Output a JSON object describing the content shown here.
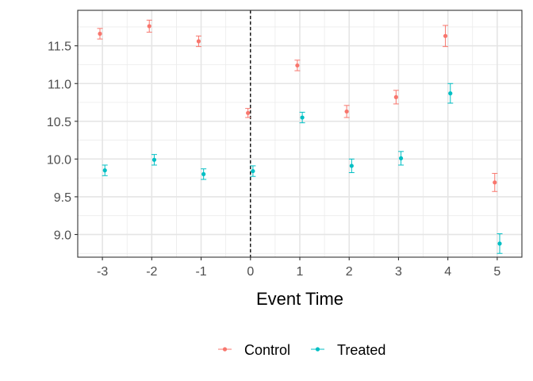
{
  "chart_data": {
    "type": "scatter",
    "title": "",
    "xlabel": "Event Time",
    "ylabel": "",
    "xlim": [
      -3.5,
      5.5
    ],
    "ylim": [
      8.7,
      11.97
    ],
    "x_ticks": [
      -3,
      -2,
      -1,
      0,
      1,
      2,
      3,
      4,
      5
    ],
    "x_tick_labels": [
      "-3",
      "-2",
      "-1",
      "0",
      "1",
      "2",
      "3",
      "4",
      "5"
    ],
    "y_ticks": [
      9.0,
      9.5,
      10.0,
      10.5,
      11.0,
      11.5
    ],
    "y_tick_labels": [
      "9.0",
      "9.5",
      "10.0",
      "10.5",
      "11.0",
      "11.5"
    ],
    "grid": true,
    "reference_line": {
      "x": 0,
      "style": "dashed",
      "color": "#000000"
    },
    "legend_position": "bottom",
    "dodge": 0.05,
    "series": [
      {
        "name": "Control",
        "color": "#F8766D",
        "x": [
          -3,
          -2,
          -1,
          0,
          1,
          2,
          3,
          4,
          5
        ],
        "y": [
          11.66,
          11.76,
          11.56,
          10.61,
          11.24,
          10.63,
          10.82,
          11.63,
          9.69
        ],
        "error": [
          0.07,
          0.08,
          0.07,
          0.06,
          0.07,
          0.08,
          0.09,
          0.14,
          0.12
        ]
      },
      {
        "name": "Treated",
        "color": "#00BFC4",
        "x": [
          -3,
          -2,
          -1,
          0,
          1,
          2,
          3,
          4,
          5
        ],
        "y": [
          9.85,
          9.99,
          9.8,
          9.84,
          10.55,
          9.91,
          10.01,
          10.87,
          8.88
        ],
        "error": [
          0.07,
          0.07,
          0.07,
          0.07,
          0.07,
          0.09,
          0.09,
          0.13,
          0.13
        ]
      }
    ]
  }
}
